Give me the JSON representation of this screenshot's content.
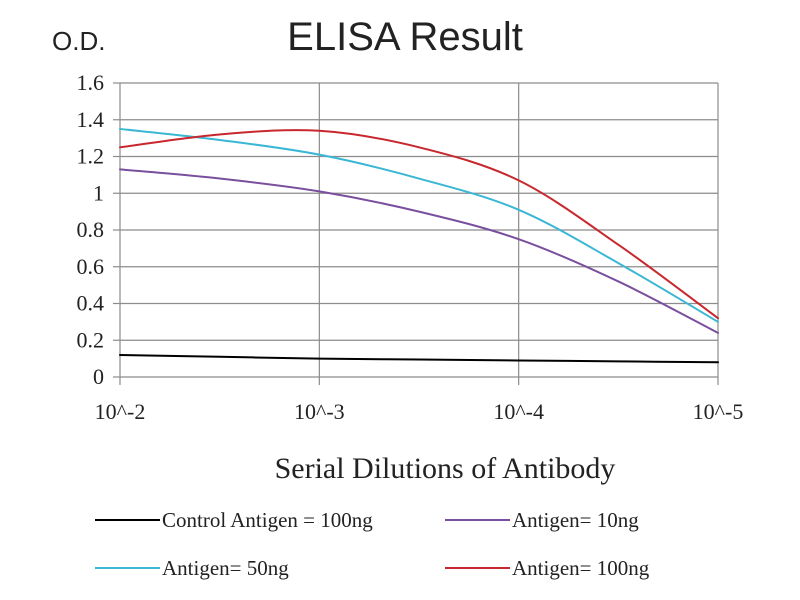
{
  "chart_data": {
    "type": "line",
    "title": "ELISA Result",
    "ylabel": "O.D.",
    "xlabel": "Serial Dilutions  of Antibody",
    "categories": [
      "10^-2",
      "10^-3",
      "10^-4",
      "10^-5"
    ],
    "yticks": [
      "0",
      "0.2",
      "0.4",
      "0.6",
      "0.8",
      "1",
      "1.2",
      "1.4",
      "1.6"
    ],
    "ylim": [
      0,
      1.6
    ],
    "grid": true,
    "legend_position": "bottom",
    "series": [
      {
        "name": "Control Antigen = 100ng",
        "color": "#000000",
        "x": [
          0,
          0.5,
          1,
          1.5,
          2,
          2.5,
          3
        ],
        "values": [
          0.12,
          0.11,
          0.1,
          0.095,
          0.09,
          0.085,
          0.08
        ]
      },
      {
        "name": "Antigen= 10ng",
        "color": "#7a4f9e",
        "x": [
          0,
          0.5,
          1,
          1.5,
          2,
          2.5,
          3
        ],
        "values": [
          1.13,
          1.08,
          1.01,
          0.9,
          0.75,
          0.52,
          0.24
        ]
      },
      {
        "name": "Antigen= 50ng",
        "color": "#3ab7d4",
        "x": [
          0,
          0.5,
          1,
          1.5,
          2,
          2.5,
          3
        ],
        "values": [
          1.35,
          1.29,
          1.21,
          1.08,
          0.91,
          0.62,
          0.3
        ]
      },
      {
        "name": "Antigen= 100ng",
        "color": "#c8282d",
        "x": [
          0,
          0.5,
          1,
          1.5,
          2,
          2.5,
          3
        ],
        "values": [
          1.25,
          1.32,
          1.34,
          1.25,
          1.07,
          0.72,
          0.32
        ]
      }
    ]
  }
}
